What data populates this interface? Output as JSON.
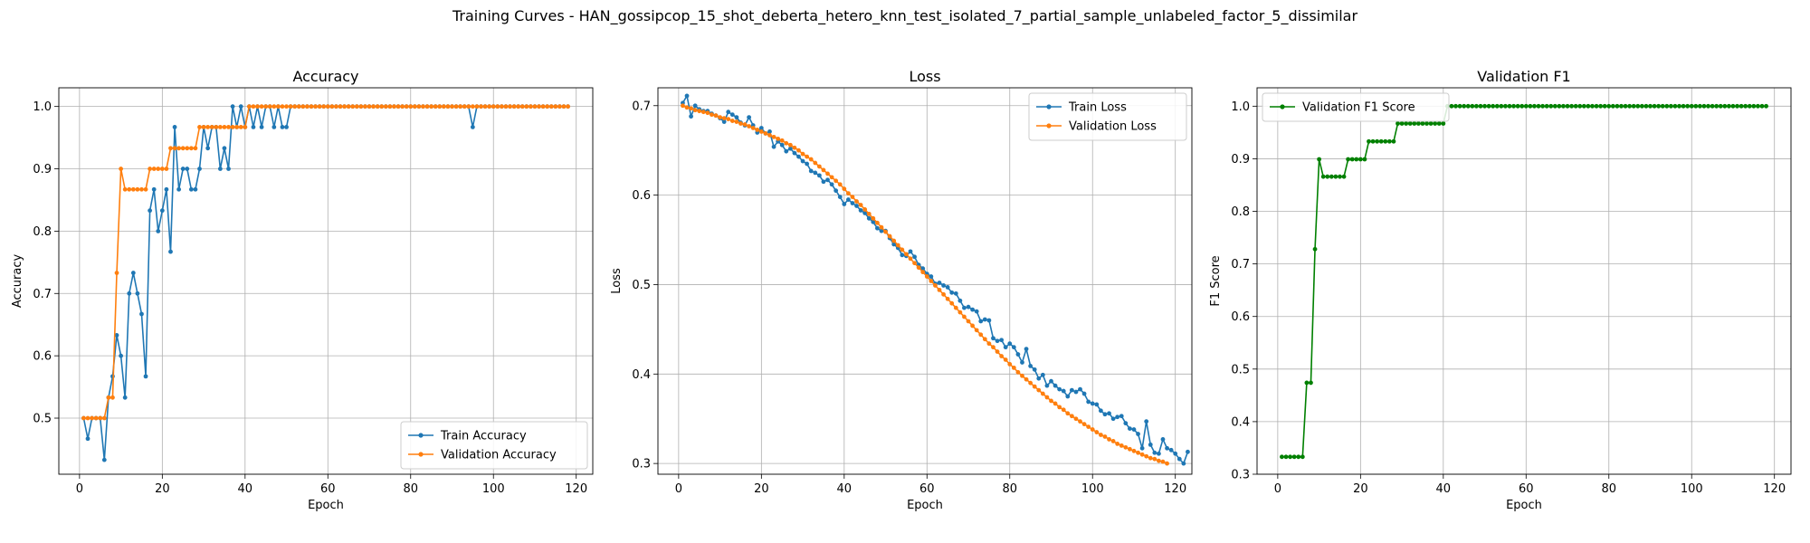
{
  "figure": {
    "suptitle": "Training Curves - HAN_gossipcop_15_shot_deberta_hetero_knn_test_isolated_7_partial_sample_unlabeled_factor_5_dissimilar"
  },
  "colors": {
    "train": "#1f77b4",
    "validation": "#ff7f0e",
    "f1": "#008000",
    "grid": "#b0b0b0"
  },
  "chart_data": [
    {
      "type": "line",
      "title": "Accuracy",
      "xlabel": "Epoch",
      "ylabel": "Accuracy",
      "xlim": [
        -5,
        124
      ],
      "ylim": [
        0.41,
        1.03
      ],
      "xticks": [
        0,
        20,
        40,
        60,
        80,
        100,
        120
      ],
      "yticks": [
        0.5,
        0.6,
        0.7,
        0.8,
        0.9,
        1.0
      ],
      "tick_labels_y": [
        "0.5",
        "0.6",
        "0.7",
        "0.8",
        "0.9",
        "1.0"
      ],
      "grid": true,
      "legend_position": "lower-right",
      "series": [
        {
          "name": "Train Accuracy",
          "color": "#1f77b4",
          "x_start": 1,
          "values": [
            0.5,
            0.467,
            0.5,
            0.5,
            0.5,
            0.433,
            0.533,
            0.567,
            0.633,
            0.6,
            0.533,
            0.7,
            0.733,
            0.7,
            0.667,
            0.567,
            0.833,
            0.867,
            0.8,
            0.833,
            0.867,
            0.767,
            0.967,
            0.867,
            0.9,
            0.9,
            0.867,
            0.867,
            0.9,
            0.967,
            0.933,
            0.967,
            0.967,
            0.9,
            0.933,
            0.9,
            1.0,
            0.967,
            1.0,
            0.967,
            1.0,
            0.967,
            1.0,
            0.967,
            1.0,
            1.0,
            0.967,
            1.0,
            0.967,
            0.967,
            1.0,
            1.0,
            1.0,
            1.0,
            1.0,
            1.0,
            1.0,
            1.0,
            1.0,
            1.0,
            1.0,
            1.0,
            1.0,
            1.0,
            1.0,
            1.0,
            1.0,
            1.0,
            1.0,
            1.0,
            1.0,
            1.0,
            1.0,
            1.0,
            1.0,
            1.0,
            1.0,
            1.0,
            1.0,
            1.0,
            1.0,
            1.0,
            1.0,
            1.0,
            1.0,
            1.0,
            1.0,
            1.0,
            1.0,
            1.0,
            1.0,
            1.0,
            1.0,
            1.0,
            0.967,
            1.0,
            1.0,
            1.0,
            1.0,
            1.0,
            1.0,
            1.0,
            1.0,
            1.0,
            1.0,
            1.0,
            1.0,
            1.0,
            1.0,
            1.0,
            1.0,
            1.0,
            1.0,
            1.0,
            1.0,
            1.0,
            1.0,
            1.0
          ]
        },
        {
          "name": "Validation Accuracy",
          "color": "#ff7f0e",
          "x_start": 1,
          "values": [
            0.5,
            0.5,
            0.5,
            0.5,
            0.5,
            0.5,
            0.533,
            0.533,
            0.733,
            0.9,
            0.867,
            0.867,
            0.867,
            0.867,
            0.867,
            0.867,
            0.9,
            0.9,
            0.9,
            0.9,
            0.9,
            0.933,
            0.933,
            0.933,
            0.933,
            0.933,
            0.933,
            0.933,
            0.967,
            0.967,
            0.967,
            0.967,
            0.967,
            0.967,
            0.967,
            0.967,
            0.967,
            0.967,
            0.967,
            0.967,
            1.0,
            1.0,
            1.0,
            1.0,
            1.0,
            1.0,
            1.0,
            1.0,
            1.0,
            1.0,
            1.0,
            1.0,
            1.0,
            1.0,
            1.0,
            1.0,
            1.0,
            1.0,
            1.0,
            1.0,
            1.0,
            1.0,
            1.0,
            1.0,
            1.0,
            1.0,
            1.0,
            1.0,
            1.0,
            1.0,
            1.0,
            1.0,
            1.0,
            1.0,
            1.0,
            1.0,
            1.0,
            1.0,
            1.0,
            1.0,
            1.0,
            1.0,
            1.0,
            1.0,
            1.0,
            1.0,
            1.0,
            1.0,
            1.0,
            1.0,
            1.0,
            1.0,
            1.0,
            1.0,
            1.0,
            1.0,
            1.0,
            1.0,
            1.0,
            1.0,
            1.0,
            1.0,
            1.0,
            1.0,
            1.0,
            1.0,
            1.0,
            1.0,
            1.0,
            1.0,
            1.0,
            1.0,
            1.0,
            1.0,
            1.0,
            1.0,
            1.0,
            1.0
          ]
        }
      ]
    },
    {
      "type": "line",
      "title": "Loss",
      "xlabel": "Epoch",
      "ylabel": "Loss",
      "xlim": [
        -5,
        124
      ],
      "ylim": [
        0.288,
        0.72
      ],
      "xticks": [
        0,
        20,
        40,
        60,
        80,
        100,
        120
      ],
      "yticks": [
        0.3,
        0.4,
        0.5,
        0.6,
        0.7
      ],
      "tick_labels_y": [
        "0.3",
        "0.4",
        "0.5",
        "0.6",
        "0.7"
      ],
      "grid": true,
      "legend_position": "upper-right",
      "series": [
        {
          "name": "Train Loss",
          "color": "#1f77b4",
          "x_start": 1,
          "values": [
            0.703,
            0.711,
            0.688,
            0.7,
            0.696,
            0.694,
            0.694,
            0.691,
            0.689,
            0.686,
            0.682,
            0.693,
            0.69,
            0.687,
            0.681,
            0.678,
            0.687,
            0.678,
            0.67,
            0.675,
            0.669,
            0.671,
            0.654,
            0.66,
            0.656,
            0.649,
            0.652,
            0.647,
            0.643,
            0.638,
            0.635,
            0.627,
            0.625,
            0.622,
            0.615,
            0.617,
            0.612,
            0.605,
            0.598,
            0.59,
            0.595,
            0.591,
            0.588,
            0.583,
            0.58,
            0.574,
            0.57,
            0.563,
            0.56,
            0.56,
            0.552,
            0.545,
            0.541,
            0.533,
            0.532,
            0.537,
            0.531,
            0.522,
            0.518,
            0.512,
            0.509,
            0.501,
            0.502,
            0.499,
            0.497,
            0.491,
            0.49,
            0.482,
            0.474,
            0.475,
            0.472,
            0.47,
            0.459,
            0.461,
            0.46,
            0.44,
            0.437,
            0.438,
            0.43,
            0.434,
            0.43,
            0.422,
            0.413,
            0.428,
            0.409,
            0.405,
            0.395,
            0.399,
            0.387,
            0.392,
            0.387,
            0.383,
            0.381,
            0.375,
            0.382,
            0.38,
            0.383,
            0.378,
            0.369,
            0.367,
            0.366,
            0.359,
            0.355,
            0.356,
            0.35,
            0.352,
            0.353,
            0.345,
            0.339,
            0.338,
            0.333,
            0.317,
            0.347,
            0.321,
            0.312,
            0.311,
            0.327,
            0.317,
            0.315,
            0.311,
            0.305,
            0.3,
            0.313
          ]
        },
        {
          "name": "Validation Loss",
          "color": "#ff7f0e",
          "x_start": 1,
          "values": [
            0.7,
            0.698,
            0.697,
            0.695,
            0.694,
            0.693,
            0.692,
            0.69,
            0.689,
            0.687,
            0.686,
            0.685,
            0.683,
            0.682,
            0.68,
            0.679,
            0.677,
            0.675,
            0.673,
            0.671,
            0.669,
            0.667,
            0.665,
            0.663,
            0.661,
            0.658,
            0.656,
            0.653,
            0.65,
            0.646,
            0.643,
            0.64,
            0.636,
            0.632,
            0.628,
            0.624,
            0.62,
            0.616,
            0.612,
            0.607,
            0.602,
            0.598,
            0.593,
            0.589,
            0.584,
            0.579,
            0.574,
            0.569,
            0.564,
            0.559,
            0.554,
            0.549,
            0.544,
            0.539,
            0.534,
            0.529,
            0.524,
            0.519,
            0.514,
            0.509,
            0.504,
            0.499,
            0.494,
            0.489,
            0.484,
            0.479,
            0.474,
            0.469,
            0.464,
            0.459,
            0.454,
            0.449,
            0.444,
            0.439,
            0.434,
            0.43,
            0.425,
            0.42,
            0.416,
            0.411,
            0.407,
            0.402,
            0.398,
            0.394,
            0.39,
            0.386,
            0.382,
            0.378,
            0.374,
            0.37,
            0.367,
            0.363,
            0.36,
            0.356,
            0.353,
            0.35,
            0.347,
            0.344,
            0.341,
            0.338,
            0.335,
            0.332,
            0.33,
            0.327,
            0.325,
            0.322,
            0.32,
            0.318,
            0.316,
            0.314,
            0.312,
            0.31,
            0.308,
            0.306,
            0.305,
            0.303,
            0.302,
            0.3
          ]
        }
      ]
    },
    {
      "type": "line",
      "title": "Validation F1",
      "xlabel": "Epoch",
      "ylabel": "F1 Score",
      "xlim": [
        -5,
        124
      ],
      "ylim": [
        0.3,
        1.035
      ],
      "xticks": [
        0,
        20,
        40,
        60,
        80,
        100,
        120
      ],
      "yticks": [
        0.3,
        0.4,
        0.5,
        0.6,
        0.7,
        0.8,
        0.9,
        1.0
      ],
      "tick_labels_y": [
        "0.3",
        "0.4",
        "0.5",
        "0.6",
        "0.7",
        "0.8",
        "0.9",
        "1.0"
      ],
      "grid": true,
      "legend_position": "upper-left",
      "series": [
        {
          "name": "Validation F1 Score",
          "color": "#008000",
          "x_start": 1,
          "values": [
            0.333,
            0.333,
            0.333,
            0.333,
            0.333,
            0.333,
            0.474,
            0.474,
            0.728,
            0.899,
            0.866,
            0.866,
            0.866,
            0.866,
            0.866,
            0.866,
            0.899,
            0.899,
            0.899,
            0.899,
            0.899,
            0.933,
            0.933,
            0.933,
            0.933,
            0.933,
            0.933,
            0.933,
            0.967,
            0.967,
            0.967,
            0.967,
            0.967,
            0.967,
            0.967,
            0.967,
            0.967,
            0.967,
            0.967,
            0.967,
            1.0,
            1.0,
            1.0,
            1.0,
            1.0,
            1.0,
            1.0,
            1.0,
            1.0,
            1.0,
            1.0,
            1.0,
            1.0,
            1.0,
            1.0,
            1.0,
            1.0,
            1.0,
            1.0,
            1.0,
            1.0,
            1.0,
            1.0,
            1.0,
            1.0,
            1.0,
            1.0,
            1.0,
            1.0,
            1.0,
            1.0,
            1.0,
            1.0,
            1.0,
            1.0,
            1.0,
            1.0,
            1.0,
            1.0,
            1.0,
            1.0,
            1.0,
            1.0,
            1.0,
            1.0,
            1.0,
            1.0,
            1.0,
            1.0,
            1.0,
            1.0,
            1.0,
            1.0,
            1.0,
            1.0,
            1.0,
            1.0,
            1.0,
            1.0,
            1.0,
            1.0,
            1.0,
            1.0,
            1.0,
            1.0,
            1.0,
            1.0,
            1.0,
            1.0,
            1.0,
            1.0,
            1.0,
            1.0,
            1.0,
            1.0,
            1.0,
            1.0,
            1.0
          ]
        }
      ]
    }
  ]
}
